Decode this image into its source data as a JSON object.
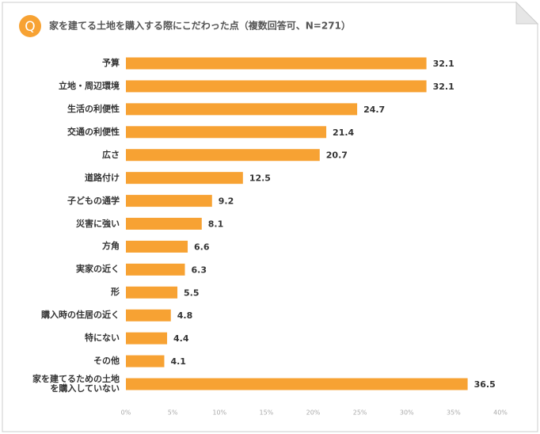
{
  "chart_data": {
    "type": "bar",
    "orientation": "horizontal",
    "badge": "Q",
    "title": "家を建てる土地を購入する際にこだわった点（複数回答可、N=271）",
    "categories": [
      "予算",
      "立地・周辺環境",
      "生活の利便性",
      "交通の利便性",
      "広さ",
      "道路付け",
      "子どもの通学",
      "災害に強い",
      "方角",
      "実家の近く",
      "形",
      "購入時の住居の近く",
      "特にない",
      "その他",
      "家を建てるための土地\nを購入していない"
    ],
    "values": [
      32.1,
      32.1,
      24.7,
      21.4,
      20.7,
      12.5,
      9.2,
      8.1,
      6.6,
      6.3,
      5.5,
      4.8,
      4.4,
      4.1,
      36.5
    ],
    "color": "#f7a233",
    "xlim": [
      0,
      40
    ],
    "xticks": [
      {
        "value": 0,
        "label": "0%"
      },
      {
        "value": 5,
        "label": "5%"
      },
      {
        "value": 10,
        "label": "10%"
      },
      {
        "value": 15,
        "label": "15%"
      },
      {
        "value": 20,
        "label": "20%"
      },
      {
        "value": 25,
        "label": "25%"
      },
      {
        "value": 30,
        "label": "30%"
      },
      {
        "value": 35,
        "label": "35%"
      },
      {
        "value": 40,
        "label": "40%"
      }
    ],
    "grid": false
  }
}
